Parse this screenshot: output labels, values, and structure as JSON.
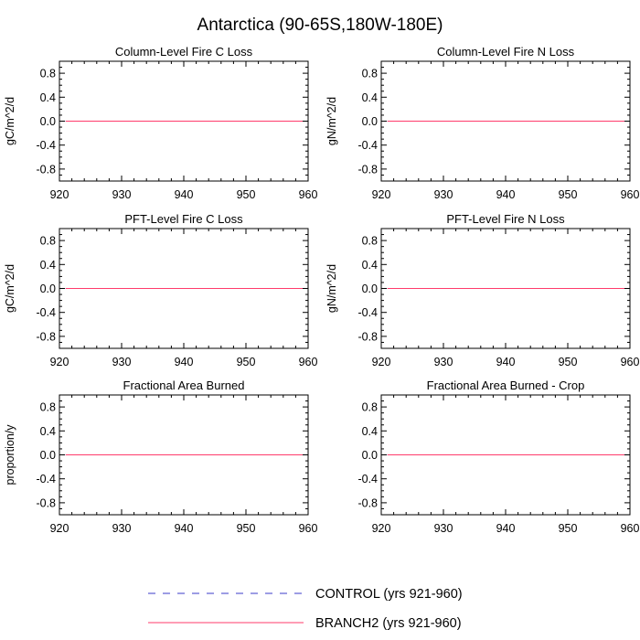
{
  "title": "Antarctica (90-65S,180W-180E)",
  "colors": {
    "control": "#3b3bc8",
    "branch2": "#ff3b6b",
    "axis": "#000000"
  },
  "legend": {
    "placement": "bottom-center",
    "items": [
      {
        "label": "CONTROL (yrs 921-960)",
        "style": "dashed",
        "color": "#3b3bc8"
      },
      {
        "label": "BRANCH2 (yrs 921-960)",
        "style": "solid",
        "color": "#ff3b6b"
      }
    ]
  },
  "chart_data": [
    {
      "type": "line",
      "title": "Column-Level Fire C Loss",
      "ylabel": "gC/m^2/d",
      "xlim": [
        920,
        960
      ],
      "ylim": [
        -1,
        1
      ],
      "xticks": [
        920,
        930,
        940,
        950,
        960
      ],
      "yticks": [
        "0.8",
        "0.4",
        "0.0",
        "-0.4",
        "-0.8"
      ],
      "x": [
        921,
        960
      ],
      "series": [
        {
          "name": "CONTROL (yrs 921-960)",
          "values": [
            0,
            0
          ]
        },
        {
          "name": "BRANCH2 (yrs 921-960)",
          "values": [
            0,
            0
          ]
        }
      ]
    },
    {
      "type": "line",
      "title": "Column-Level Fire N Loss",
      "ylabel": "gN/m^2/d",
      "xlim": [
        920,
        960
      ],
      "ylim": [
        -1,
        1
      ],
      "xticks": [
        920,
        930,
        940,
        950,
        960
      ],
      "yticks": [
        "0.8",
        "0.4",
        "0.0",
        "-0.4",
        "-0.8"
      ],
      "x": [
        921,
        960
      ],
      "series": [
        {
          "name": "CONTROL (yrs 921-960)",
          "values": [
            0,
            0
          ]
        },
        {
          "name": "BRANCH2 (yrs 921-960)",
          "values": [
            0,
            0
          ]
        }
      ]
    },
    {
      "type": "line",
      "title": "PFT-Level Fire C Loss",
      "ylabel": "gC/m^2/d",
      "xlim": [
        920,
        960
      ],
      "ylim": [
        -1,
        1
      ],
      "xticks": [
        920,
        930,
        940,
        950,
        960
      ],
      "yticks": [
        "0.8",
        "0.4",
        "0.0",
        "-0.4",
        "-0.8"
      ],
      "x": [
        921,
        960
      ],
      "series": [
        {
          "name": "CONTROL (yrs 921-960)",
          "values": [
            0,
            0
          ]
        },
        {
          "name": "BRANCH2 (yrs 921-960)",
          "values": [
            0,
            0
          ]
        }
      ]
    },
    {
      "type": "line",
      "title": "PFT-Level Fire N Loss",
      "ylabel": "gN/m^2/d",
      "xlim": [
        920,
        960
      ],
      "ylim": [
        -1,
        1
      ],
      "xticks": [
        920,
        930,
        940,
        950,
        960
      ],
      "yticks": [
        "0.8",
        "0.4",
        "0.0",
        "-0.4",
        "-0.8"
      ],
      "x": [
        921,
        960
      ],
      "series": [
        {
          "name": "CONTROL (yrs 921-960)",
          "values": [
            0,
            0
          ]
        },
        {
          "name": "BRANCH2 (yrs 921-960)",
          "values": [
            0,
            0
          ]
        }
      ]
    },
    {
      "type": "line",
      "title": "Fractional Area Burned",
      "ylabel": "proportion/y",
      "xlim": [
        920,
        960
      ],
      "ylim": [
        -1,
        1
      ],
      "xticks": [
        920,
        930,
        940,
        950,
        960
      ],
      "yticks": [
        "0.8",
        "0.4",
        "0.0",
        "-0.4",
        "-0.8"
      ],
      "x": [
        921,
        960
      ],
      "series": [
        {
          "name": "CONTROL (yrs 921-960)",
          "values": [
            0,
            0
          ]
        },
        {
          "name": "BRANCH2 (yrs 921-960)",
          "values": [
            0,
            0
          ]
        }
      ]
    },
    {
      "type": "line",
      "title": "Fractional Area Burned - Crop",
      "ylabel": "",
      "xlim": [
        920,
        960
      ],
      "ylim": [
        -1,
        1
      ],
      "xticks": [
        920,
        930,
        940,
        950,
        960
      ],
      "yticks": [
        "0.8",
        "0.4",
        "0.0",
        "-0.4",
        "-0.8"
      ],
      "x": [
        921,
        960
      ],
      "series": [
        {
          "name": "CONTROL (yrs 921-960)",
          "values": [
            0,
            0
          ]
        },
        {
          "name": "BRANCH2 (yrs 921-960)",
          "values": [
            0,
            0
          ]
        }
      ]
    }
  ]
}
